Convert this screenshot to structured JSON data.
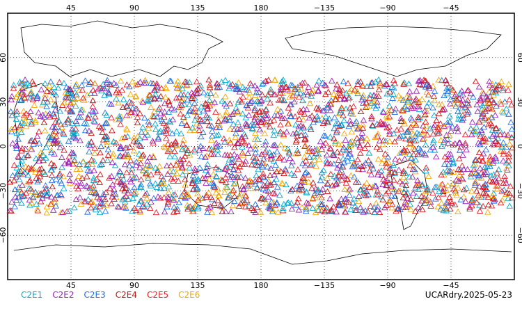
{
  "map": {
    "top_lon_labels": [
      "45",
      "90",
      "135",
      "180",
      "−135",
      "−90",
      "−45"
    ],
    "bottom_lon_labels": [
      "45",
      "90",
      "135",
      "180",
      "−135",
      "−90",
      "−45"
    ],
    "left_lat_labels": [
      "60",
      "30",
      "0",
      "−30",
      "−60"
    ],
    "right_lat_labels": [
      "60",
      "30",
      "0",
      "−30",
      "−60"
    ],
    "lat_range": [
      -90,
      90
    ],
    "lon_range_center_180": [
      0,
      360
    ],
    "observation_lat_band": [
      -45,
      45
    ],
    "marker_shape": "triangle",
    "grid": "dotted"
  },
  "legend": [
    {
      "label": "C2E1",
      "color": "#00aacc"
    },
    {
      "label": "C2E2",
      "color": "#9a1fb8"
    },
    {
      "label": "C2E3",
      "color": "#1f6fe0"
    },
    {
      "label": "C2E4",
      "color": "#cc1010"
    },
    {
      "label": "C2E5",
      "color": "#e01e2a"
    },
    {
      "label": "C2E6",
      "color": "#f0a800"
    }
  ],
  "stamp": "UCARdry.2025-05-23"
}
